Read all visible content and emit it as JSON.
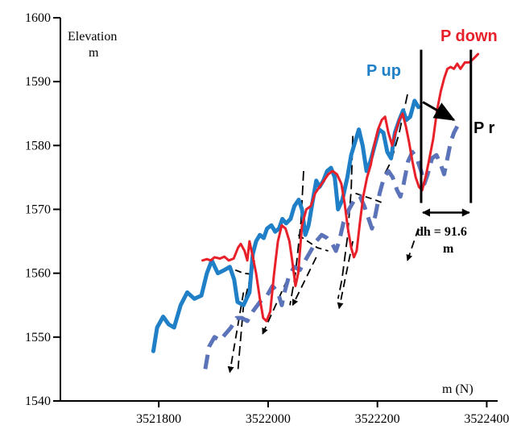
{
  "chart_data": {
    "type": "line",
    "title": "",
    "xlabel": "m (N)",
    "ylabel_line1": "Elevation",
    "ylabel_line2": "m",
    "xlim": [
      3521620,
      3522420
    ],
    "ylim": [
      1540,
      1600
    ],
    "x_ticks": [
      {
        "value": 3521800,
        "label": "3521800"
      },
      {
        "value": 3522000,
        "label": "3522000"
      },
      {
        "value": 3522200,
        "label": "3522200"
      },
      {
        "value": 3522400,
        "label": "3522400"
      }
    ],
    "y_ticks": [
      {
        "value": 1540,
        "label": "1540"
      },
      {
        "value": 1550,
        "label": "1550"
      },
      {
        "value": 1560,
        "label": "1560"
      },
      {
        "value": 1570,
        "label": "1570"
      },
      {
        "value": 1580,
        "label": "1580"
      },
      {
        "value": 1590,
        "label": "1590"
      },
      {
        "value": 1600,
        "label": "1600"
      }
    ],
    "colors": {
      "p_up": "#1f7fc7",
      "p_down": "#e8202a",
      "p_r": "#5b73b8",
      "annotation": "#000000"
    },
    "series": [
      {
        "name": "P up",
        "style": "solid",
        "points": [
          [
            3521790,
            1547.8
          ],
          [
            3521797,
            1551.5
          ],
          [
            3521808,
            1553.2
          ],
          [
            3521818,
            1552.0
          ],
          [
            3521828,
            1551.5
          ],
          [
            3521840,
            1555.0
          ],
          [
            3521852,
            1557.0
          ],
          [
            3521865,
            1556.0
          ],
          [
            3521878,
            1556.5
          ],
          [
            3521888,
            1560.0
          ],
          [
            3521897,
            1562.0
          ],
          [
            3521908,
            1560.0
          ],
          [
            3521920,
            1560.5
          ],
          [
            3521930,
            1561.0
          ],
          [
            3521938,
            1559.0
          ],
          [
            3521944,
            1555.5
          ],
          [
            3521955,
            1555.0
          ],
          [
            3521966,
            1557.0
          ],
          [
            3521972,
            1563.0
          ],
          [
            3521978,
            1565.0
          ],
          [
            3521985,
            1566.0
          ],
          [
            3521992,
            1565.5
          ],
          [
            3521998,
            1567.0
          ],
          [
            3522006,
            1567.5
          ],
          [
            3522013,
            1566.5
          ],
          [
            3522020,
            1567.0
          ],
          [
            3522026,
            1568.5
          ],
          [
            3522033,
            1567.8
          ],
          [
            3522041,
            1568.5
          ],
          [
            3522048,
            1570.5
          ],
          [
            3522056,
            1571.5
          ],
          [
            3522062,
            1570.0
          ],
          [
            3522068,
            1566.0
          ],
          [
            3522074,
            1567.5
          ],
          [
            3522081,
            1571.0
          ],
          [
            3522088,
            1574.5
          ],
          [
            3522094,
            1573.5
          ],
          [
            3522101,
            1574.5
          ],
          [
            3522108,
            1576.0
          ],
          [
            3522115,
            1576.5
          ],
          [
            3522122,
            1575.0
          ],
          [
            3522128,
            1570.0
          ],
          [
            3522136,
            1571.5
          ],
          [
            3522145,
            1575.0
          ],
          [
            3522152,
            1578.5
          ],
          [
            3522159,
            1580.5
          ],
          [
            3522166,
            1582.5
          ],
          [
            3522173,
            1580.0
          ],
          [
            3522180,
            1576.0
          ],
          [
            3522187,
            1577.5
          ],
          [
            3522195,
            1580.0
          ],
          [
            3522203,
            1582.5
          ],
          [
            3522211,
            1582.0
          ],
          [
            3522218,
            1579.0
          ],
          [
            3522225,
            1578.0
          ],
          [
            3522232,
            1582.0
          ],
          [
            3522240,
            1584.0
          ],
          [
            3522247,
            1585.5
          ],
          [
            3522253,
            1584.0
          ],
          [
            3522260,
            1584.5
          ],
          [
            3522268,
            1587.0
          ],
          [
            3522275,
            1586.0
          ]
        ]
      },
      {
        "name": "P down",
        "style": "solid",
        "points": [
          [
            3521880,
            1562.0
          ],
          [
            3521888,
            1562.2
          ],
          [
            3521895,
            1562.0
          ],
          [
            3521902,
            1562.5
          ],
          [
            3521912,
            1562.3
          ],
          [
            3521920,
            1562.6
          ],
          [
            3521928,
            1562.0
          ],
          [
            3521937,
            1562.3
          ],
          [
            3521945,
            1564.0
          ],
          [
            3521950,
            1564.6
          ],
          [
            3521957,
            1563.5
          ],
          [
            3521962,
            1562.0
          ],
          [
            3521966,
            1565.0
          ],
          [
            3521971,
            1563.0
          ],
          [
            3521978,
            1560.0
          ],
          [
            3521985,
            1556.0
          ],
          [
            3521991,
            1553.0
          ],
          [
            3521997,
            1552.5
          ],
          [
            3522004,
            1554.0
          ],
          [
            3522011,
            1560.0
          ],
          [
            3522018,
            1565.0
          ],
          [
            3522025,
            1567.5
          ],
          [
            3522032,
            1567.0
          ],
          [
            3522039,
            1565.0
          ],
          [
            3522044,
            1562.0
          ],
          [
            3522050,
            1558.0
          ],
          [
            3522055,
            1560.0
          ],
          [
            3522062,
            1567.5
          ],
          [
            3522070,
            1570.0
          ],
          [
            3522078,
            1570.5
          ],
          [
            3522086,
            1572.5
          ],
          [
            3522094,
            1573.5
          ],
          [
            3522102,
            1574.5
          ],
          [
            3522110,
            1575.5
          ],
          [
            3522118,
            1576.0
          ],
          [
            3522126,
            1575.5
          ],
          [
            3522134,
            1574.0
          ],
          [
            3522140,
            1571.0
          ],
          [
            3522146,
            1567.0
          ],
          [
            3522152,
            1564.0
          ],
          [
            3522157,
            1562.5
          ],
          [
            3522162,
            1563.5
          ],
          [
            3522168,
            1568.0
          ],
          [
            3522174,
            1572.0
          ],
          [
            3522181,
            1575.0
          ],
          [
            3522188,
            1577.0
          ],
          [
            3522194,
            1580.0
          ],
          [
            3522201,
            1582.5
          ],
          [
            3522208,
            1584.0
          ],
          [
            3522214,
            1584.5
          ],
          [
            3522220,
            1582.0
          ],
          [
            3522227,
            1580.0
          ],
          [
            3522233,
            1582.0
          ],
          [
            3522240,
            1584.0
          ],
          [
            3522246,
            1585.0
          ],
          [
            3522252,
            1583.0
          ],
          [
            3522258,
            1580.5
          ],
          [
            3522264,
            1577.5
          ],
          [
            3522270,
            1575.0
          ],
          [
            3522276,
            1573.5
          ],
          [
            3522282,
            1573.0
          ],
          [
            3522288,
            1575.0
          ],
          [
            3522294,
            1577.5
          ],
          [
            3522302,
            1581.0
          ],
          [
            3522309,
            1585.5
          ],
          [
            3522316,
            1588.5
          ],
          [
            3522322,
            1590.5
          ],
          [
            3522328,
            1592.0
          ],
          [
            3522334,
            1592.3
          ],
          [
            3522340,
            1592.0
          ],
          [
            3522346,
            1592.8
          ],
          [
            3522352,
            1592.0
          ],
          [
            3522360,
            1593.0
          ],
          [
            3522368,
            1593.0
          ],
          [
            3522376,
            1593.6
          ],
          [
            3522384,
            1594.3
          ]
        ]
      },
      {
        "name": "P r",
        "style": "dashed",
        "points": [
          [
            3521885,
            1545.0
          ],
          [
            3521892,
            1548.5
          ],
          [
            3521902,
            1550.0
          ],
          [
            3521912,
            1549.5
          ],
          [
            3521922,
            1550.5
          ],
          [
            3521932,
            1551.5
          ],
          [
            3521942,
            1553.0
          ],
          [
            3521952,
            1553.0
          ],
          [
            3521962,
            1552.5
          ],
          [
            3521972,
            1554.0
          ],
          [
            3521985,
            1555.5
          ],
          [
            3521998,
            1556.5
          ],
          [
            3522008,
            1558.0
          ],
          [
            3522018,
            1557.0
          ],
          [
            3522025,
            1555.0
          ],
          [
            3522030,
            1557.0
          ],
          [
            3522038,
            1559.5
          ],
          [
            3522048,
            1561.0
          ],
          [
            3522058,
            1560.5
          ],
          [
            3522068,
            1562.0
          ],
          [
            3522078,
            1563.5
          ],
          [
            3522088,
            1565.0
          ],
          [
            3522098,
            1566.0
          ],
          [
            3522108,
            1565.5
          ],
          [
            3522118,
            1564.5
          ],
          [
            3522124,
            1563.5
          ],
          [
            3522130,
            1565.0
          ],
          [
            3522138,
            1568.0
          ],
          [
            3522148,
            1570.0
          ],
          [
            3522158,
            1571.5
          ],
          [
            3522168,
            1572.0
          ],
          [
            3522176,
            1570.5
          ],
          [
            3522184,
            1568.5
          ],
          [
            3522190,
            1567.0
          ],
          [
            3522196,
            1569.0
          ],
          [
            3522204,
            1572.5
          ],
          [
            3522212,
            1575.0
          ],
          [
            3522220,
            1576.0
          ],
          [
            3522228,
            1575.0
          ],
          [
            3522236,
            1573.0
          ],
          [
            3522242,
            1572.0
          ],
          [
            3522248,
            1574.0
          ],
          [
            3522256,
            1577.5
          ],
          [
            3522264,
            1579.0
          ],
          [
            3522272,
            1578.0
          ],
          [
            3522280,
            1576.0
          ],
          [
            3522286,
            1574.0
          ],
          [
            3522292,
            1575.5
          ],
          [
            3522300,
            1578.0
          ],
          [
            3522308,
            1578.5
          ],
          [
            3522316,
            1577.0
          ],
          [
            3522322,
            1575.5
          ],
          [
            3522328,
            1578.0
          ],
          [
            3522334,
            1580.5
          ],
          [
            3522340,
            1582.0
          ],
          [
            3522346,
            1583.0
          ]
        ]
      }
    ],
    "dashed_guides": [
      [
        [
          3521975,
          1562.0
        ],
        [
          3521955,
          1555.0
        ],
        [
          3521945,
          1545.0
        ]
      ],
      [
        [
          3522065,
          1576.0
        ],
        [
          3522060,
          1568.0
        ],
        [
          3522050,
          1560.0
        ],
        [
          3522040,
          1555.0
        ]
      ],
      [
        [
          3522155,
          1581.5
        ],
        [
          3522152,
          1573.0
        ],
        [
          3522145,
          1565.5
        ],
        [
          3522135,
          1559.0
        ],
        [
          3522128,
          1556.0
        ]
      ],
      [
        [
          3522255,
          1588.0
        ],
        [
          3522240,
          1582.0
        ],
        [
          3522225,
          1577.5
        ],
        [
          3522210,
          1575.0
        ]
      ]
    ],
    "dashed_arrows": [
      {
        "from": [
          3521955,
          1557.0
        ],
        "to": [
          3521930,
          1544.5
        ]
      },
      {
        "from": [
          3522035,
          1559.0
        ],
        "to": [
          3521990,
          1550.5
        ]
      },
      {
        "from": [
          3522088,
          1562.5
        ],
        "to": [
          3522045,
          1555.0
        ]
      },
      {
        "from": [
          3522155,
          1565.0
        ],
        "to": [
          3522130,
          1554.5
        ]
      },
      {
        "from": [
          3522275,
          1567.0
        ],
        "to": [
          3522255,
          1562.0
        ]
      }
    ],
    "flat_guides": [
      [
        [
          3521940,
          1560.5
        ],
        [
          3521955,
          1560.0
        ],
        [
          3521975,
          1559.8
        ]
      ],
      [
        [
          3522055,
          1566.0
        ],
        [
          3522090,
          1564.0
        ],
        [
          3522110,
          1563.5
        ]
      ],
      [
        [
          3522160,
          1572.5
        ],
        [
          3522195,
          1571.5
        ],
        [
          3522210,
          1571.0
        ]
      ]
    ],
    "annotations": {
      "label_p_up": "P up",
      "label_p_down": "P down",
      "label_p_r": "P r",
      "dh_label_line1": "dh = 91.6",
      "dh_label_line2": "m",
      "vertical_lines_x": [
        3522280,
        3522371
      ],
      "vertical_lines_y": [
        1571,
        1595
      ],
      "dh_arrow_y": 1569.5,
      "pr_arrow": {
        "from": [
          3522283,
          1586.8
        ],
        "to": [
          3522340,
          1584.0
        ]
      }
    }
  }
}
